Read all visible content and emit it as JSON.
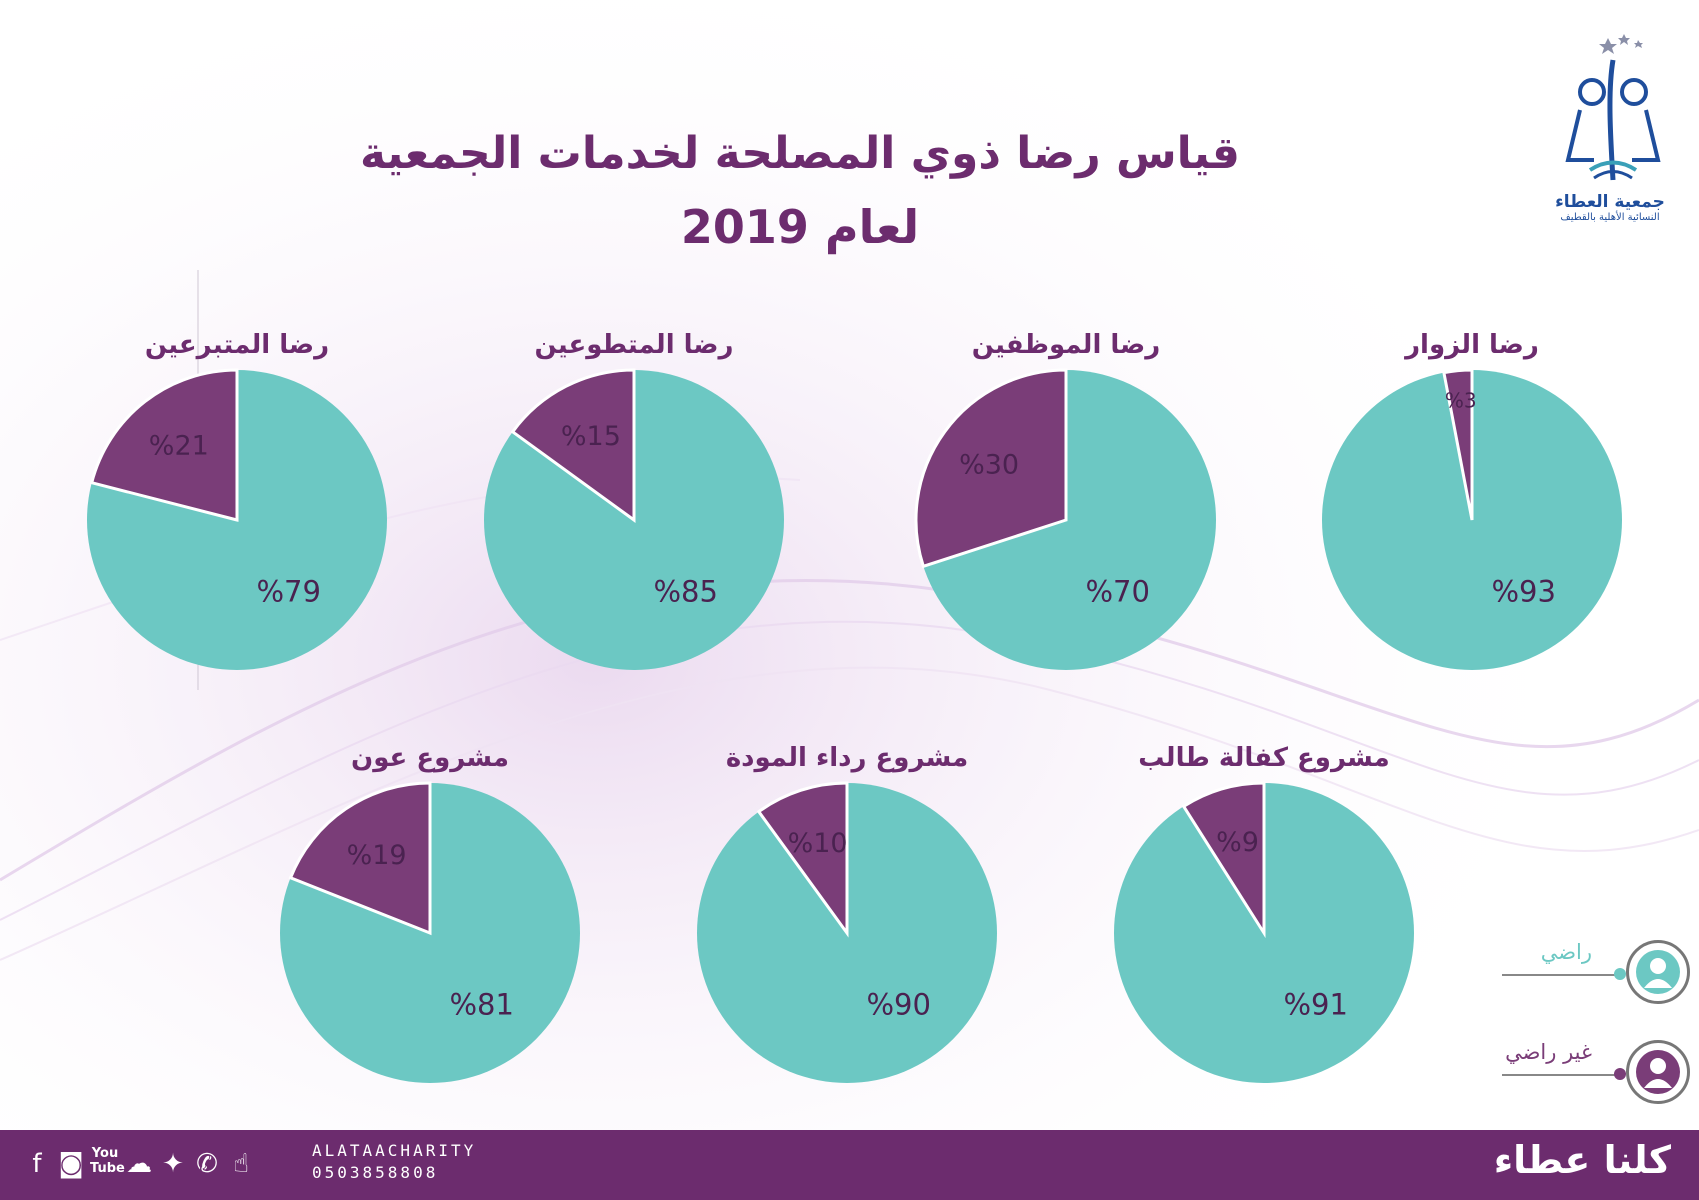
{
  "colors": {
    "satisfied": "#6cc8c3",
    "unsatisfied": "#7a3d78",
    "title": "#6c2c6e",
    "footer": "#6c2c6e"
  },
  "logo": {
    "name": "جمعية العطاء",
    "subtitle": "النسائية الأهلية بالقطيف"
  },
  "title": {
    "line1": "قياس رضا ذوي المصلحة لخدمات الجمعية",
    "line2": "لعام 2019"
  },
  "chart_data": [
    {
      "type": "pie",
      "title": "رضا الزوار",
      "slices": [
        {
          "label": "%93",
          "value": 93,
          "category": "satisfied"
        },
        {
          "label": "%3",
          "value": 3,
          "category": "unsatisfied"
        }
      ]
    },
    {
      "type": "pie",
      "title": "رضا الموظفين",
      "slices": [
        {
          "label": "%70",
          "value": 70,
          "category": "satisfied"
        },
        {
          "label": "%30",
          "value": 30,
          "category": "unsatisfied"
        }
      ]
    },
    {
      "type": "pie",
      "title": "رضا المتطوعين",
      "slices": [
        {
          "label": "%85",
          "value": 85,
          "category": "satisfied"
        },
        {
          "label": "%15",
          "value": 15,
          "category": "unsatisfied"
        }
      ]
    },
    {
      "type": "pie",
      "title": "رضا المتبرعين",
      "slices": [
        {
          "label": "%79",
          "value": 79,
          "category": "satisfied"
        },
        {
          "label": "%21",
          "value": 21,
          "category": "unsatisfied"
        }
      ]
    },
    {
      "type": "pie",
      "title": "مشروع كفالة طالب",
      "slices": [
        {
          "label": "%91",
          "value": 91,
          "category": "satisfied"
        },
        {
          "label": "%9",
          "value": 9,
          "category": "unsatisfied"
        }
      ]
    },
    {
      "type": "pie",
      "title": "مشروع رداء المودة",
      "slices": [
        {
          "label": "%90",
          "value": 90,
          "category": "satisfied"
        },
        {
          "label": "%10",
          "value": 10,
          "category": "unsatisfied"
        }
      ]
    },
    {
      "type": "pie",
      "title": "مشروع عون",
      "slices": [
        {
          "label": "%81",
          "value": 81,
          "category": "satisfied"
        },
        {
          "label": "%19",
          "value": 19,
          "category": "unsatisfied"
        }
      ]
    }
  ],
  "legend": [
    {
      "label": "راضي",
      "category": "satisfied",
      "icon": "person-icon"
    },
    {
      "label": "غير راضي",
      "category": "unsatisfied",
      "icon": "person-icon"
    }
  ],
  "footer": {
    "slogan": "كلنا عطاء",
    "handle": "ALATAACHARITY",
    "phone": "0503858808",
    "social_icons": [
      "facebook-icon",
      "instagram-icon",
      "youtube-icon",
      "snapchat-icon",
      "twitter-icon",
      "whatsapp-icon",
      "like-icon"
    ]
  }
}
